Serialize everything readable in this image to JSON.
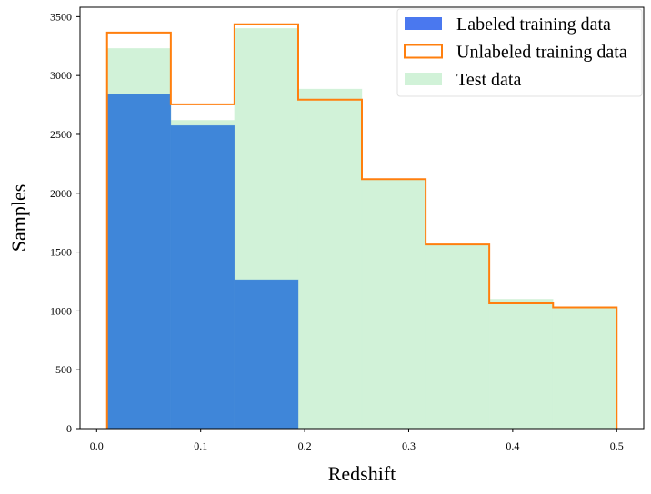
{
  "chart_data": {
    "type": "bar",
    "bin_edges": [
      0.01,
      0.0713,
      0.1325,
      0.1938,
      0.255,
      0.3163,
      0.3775,
      0.4388,
      0.5
    ],
    "series": [
      {
        "name": "Labeled training data",
        "style": "filled",
        "color": "#3f86d9",
        "values": [
          2840,
          2575,
          1265,
          0,
          0,
          0,
          0,
          0
        ]
      },
      {
        "name": "Unlabeled training data",
        "style": "step",
        "color": "#ff7f0e",
        "values": [
          3365,
          2755,
          3435,
          2795,
          2120,
          1565,
          1065,
          1030
        ]
      },
      {
        "name": "Test data",
        "style": "filled",
        "color": "#d1f2d8",
        "values": [
          3230,
          2620,
          3400,
          2885,
          2120,
          1565,
          1100,
          1030
        ]
      }
    ],
    "xlabel": "Redshift",
    "ylabel": "Samples",
    "xlim": [
      -0.016,
      0.526
    ],
    "ylim": [
      0,
      3580
    ],
    "xticks": [
      0.0,
      0.1,
      0.2,
      0.3,
      0.4,
      0.5
    ],
    "xtick_labels": [
      "0.0",
      "0.1",
      "0.2",
      "0.3",
      "0.4",
      "0.5"
    ],
    "yticks": [
      0,
      500,
      1000,
      1500,
      2000,
      2500,
      3000,
      3500
    ],
    "ytick_labels": [
      "0",
      "500",
      "1000",
      "1500",
      "2000",
      "2500",
      "3000",
      "3500"
    ],
    "grid": false,
    "legend_position": "top-right"
  }
}
